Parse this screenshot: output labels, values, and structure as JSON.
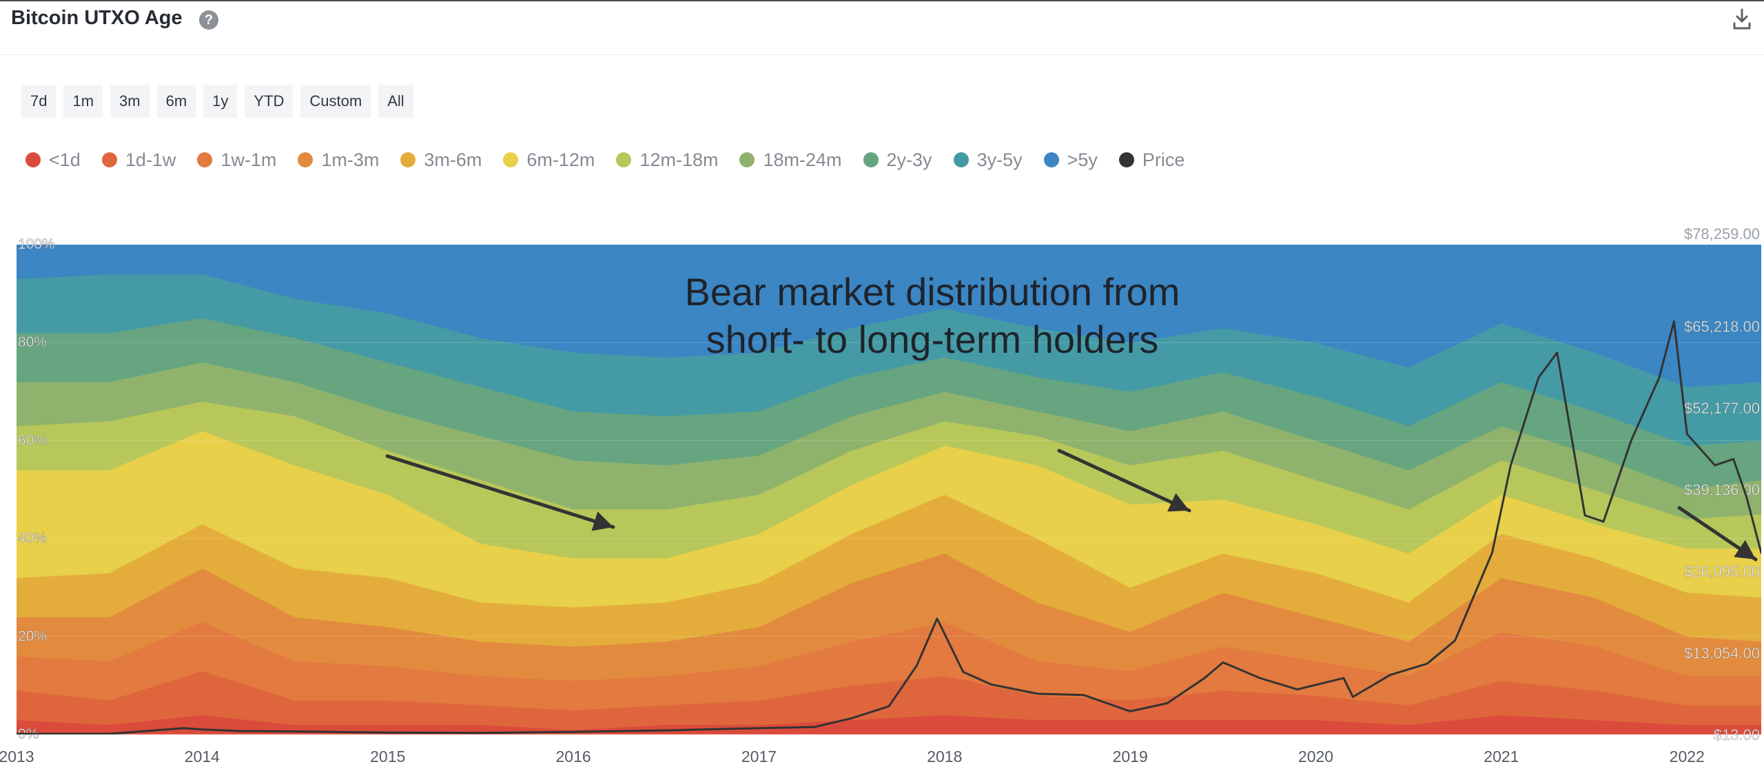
{
  "header": {
    "title": "Bitcoin UTXO Age",
    "help_icon": "question-circle-icon",
    "download_icon": "download-icon"
  },
  "range_buttons": [
    "7d",
    "1m",
    "3m",
    "6m",
    "1y",
    "YTD",
    "Custom",
    "All"
  ],
  "legend": [
    {
      "label": "<1d",
      "color": "#db4b3c"
    },
    {
      "label": "1d-1w",
      "color": "#df663c"
    },
    {
      "label": "1w-1m",
      "color": "#e37a3f"
    },
    {
      "label": "1m-3m",
      "color": "#e28b3e"
    },
    {
      "label": "3m-6m",
      "color": "#e4ad3b"
    },
    {
      "label": "6m-12m",
      "color": "#e8d04a"
    },
    {
      "label": "12m-18m",
      "color": "#b8c75a"
    },
    {
      "label": "18m-24m",
      "color": "#8fb36d"
    },
    {
      "label": "2y-3y",
      "color": "#66a580"
    },
    {
      "label": "3y-5y",
      "color": "#459ba5"
    },
    {
      "label": ">5y",
      "color": "#3b86c3"
    },
    {
      "label": "Price",
      "color": "#333333"
    }
  ],
  "chart_data": {
    "type": "area",
    "stacked": true,
    "title": "Bitcoin UTXO Age",
    "annotation": "Bear market distribution from short- to long-term holders",
    "annotation_lines": [
      "Bear market distribution from",
      "short- to long-term holders"
    ],
    "x": [
      2013.0,
      2013.5,
      2014.0,
      2014.5,
      2015.0,
      2015.5,
      2016.0,
      2016.5,
      2017.0,
      2017.5,
      2018.0,
      2018.5,
      2019.0,
      2019.5,
      2020.0,
      2020.5,
      2021.0,
      2021.5,
      2022.0,
      2022.4
    ],
    "x_ticks": [
      "2013",
      "2014",
      "2015",
      "2016",
      "2017",
      "2018",
      "2019",
      "2020",
      "2021",
      "2022"
    ],
    "y_ticks": [
      "0%",
      "20%",
      "40%",
      "60%",
      "80%",
      "100%"
    ],
    "right_axis_ticks": [
      "$13.00",
      "$13,054.00",
      "$26,095.00",
      "$39,136.00",
      "$52,177.00",
      "$65,218.00",
      "$78,259.00"
    ],
    "ylim": [
      0,
      100
    ],
    "price_range": [
      13,
      78259
    ],
    "series": [
      {
        "name": "<1d",
        "color": "#db4b3c",
        "values": [
          3,
          2,
          4,
          2,
          2,
          2,
          1,
          2,
          2,
          3,
          4,
          3,
          3,
          3,
          3,
          2,
          4,
          3,
          2,
          2
        ]
      },
      {
        "name": "1d-1w",
        "color": "#df663c",
        "values": [
          6,
          5,
          9,
          5,
          5,
          4,
          4,
          4,
          5,
          7,
          8,
          5,
          4,
          6,
          5,
          4,
          7,
          6,
          4,
          4
        ]
      },
      {
        "name": "1w-1m",
        "color": "#e37a3f",
        "values": [
          7,
          8,
          10,
          8,
          7,
          6,
          6,
          6,
          7,
          9,
          11,
          7,
          6,
          9,
          7,
          6,
          10,
          9,
          6,
          6
        ]
      },
      {
        "name": "1m-3m",
        "color": "#e28b3e",
        "values": [
          8,
          9,
          11,
          9,
          8,
          7,
          7,
          7,
          8,
          12,
          14,
          12,
          8,
          11,
          9,
          7,
          11,
          10,
          8,
          7
        ]
      },
      {
        "name": "3m-6m",
        "color": "#e4ad3b",
        "values": [
          8,
          9,
          9,
          10,
          10,
          8,
          8,
          8,
          9,
          10,
          12,
          13,
          9,
          8,
          9,
          8,
          9,
          8,
          9,
          9
        ]
      },
      {
        "name": "6m-12m",
        "color": "#e8d04a",
        "values": [
          22,
          21,
          19,
          21,
          17,
          12,
          10,
          9,
          10,
          10,
          10,
          15,
          17,
          11,
          10,
          10,
          8,
          7,
          9,
          10
        ]
      },
      {
        "name": "12m-18m",
        "color": "#b8c75a",
        "values": [
          9,
          10,
          6,
          10,
          9,
          13,
          10,
          10,
          8,
          7,
          5,
          6,
          8,
          10,
          9,
          9,
          7,
          7,
          6,
          7
        ]
      },
      {
        "name": "18m-24m",
        "color": "#8fb36d",
        "values": [
          9,
          8,
          8,
          7,
          8,
          9,
          10,
          9,
          8,
          7,
          6,
          5,
          7,
          8,
          8,
          8,
          7,
          7,
          6,
          7
        ]
      },
      {
        "name": "2y-3y",
        "color": "#66a580",
        "values": [
          10,
          10,
          9,
          9,
          10,
          10,
          10,
          10,
          9,
          8,
          7,
          7,
          8,
          8,
          9,
          9,
          9,
          9,
          9,
          8
        ]
      },
      {
        "name": "3y-5y",
        "color": "#459ba5",
        "values": [
          11,
          12,
          9,
          8,
          10,
          10,
          12,
          12,
          12,
          10,
          10,
          10,
          10,
          9,
          11,
          12,
          12,
          12,
          12,
          12
        ]
      },
      {
        "name": ">5y",
        "color": "#3b86c3",
        "values": [
          7,
          6,
          6,
          11,
          14,
          19,
          22,
          23,
          22,
          17,
          13,
          17,
          20,
          17,
          20,
          25,
          16,
          22,
          29,
          28
        ]
      }
    ],
    "price_series": {
      "name": "Price",
      "color": "#333333",
      "x": [
        2013.0,
        2013.5,
        2013.9,
        2014.0,
        2014.2,
        2014.6,
        2015.0,
        2015.5,
        2016.0,
        2016.5,
        2017.0,
        2017.3,
        2017.5,
        2017.7,
        2017.85,
        2017.96,
        2018.1,
        2018.25,
        2018.5,
        2018.75,
        2019.0,
        2019.2,
        2019.4,
        2019.5,
        2019.7,
        2019.9,
        2020.15,
        2020.2,
        2020.4,
        2020.6,
        2020.75,
        2020.95,
        2021.05,
        2021.2,
        2021.3,
        2021.45,
        2021.55,
        2021.7,
        2021.85,
        2021.93,
        2022.0,
        2022.15,
        2022.25,
        2022.32,
        2022.4
      ],
      "values": [
        100,
        100,
        1000,
        800,
        550,
        450,
        300,
        250,
        420,
        650,
        1000,
        1200,
        2600,
        4500,
        11000,
        18500,
        10000,
        8000,
        6500,
        6300,
        3700,
        5000,
        9000,
        11500,
        9000,
        7200,
        9000,
        6000,
        9500,
        11300,
        15000,
        29000,
        43000,
        57000,
        61000,
        35000,
        34000,
        47000,
        57000,
        66000,
        48000,
        43000,
        44000,
        38000,
        29000
      ]
    }
  }
}
